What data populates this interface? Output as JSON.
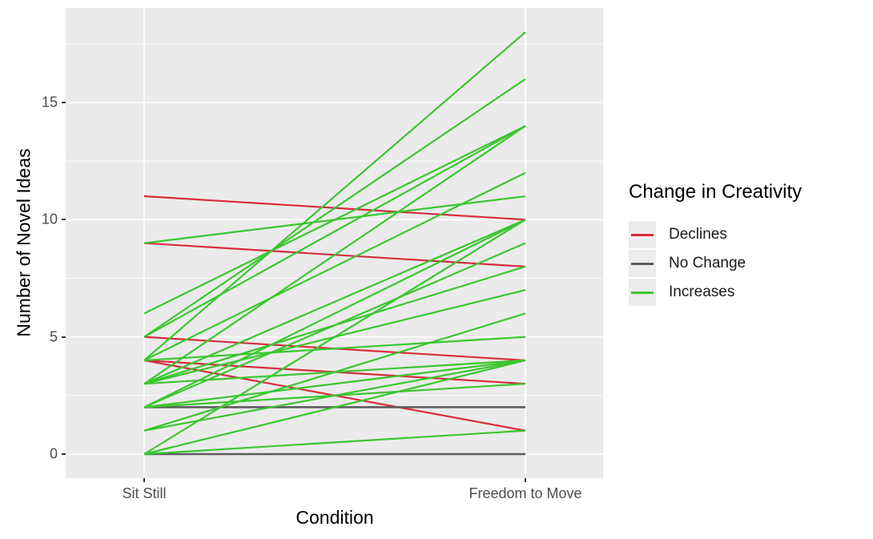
{
  "figure": {
    "y_axis": {
      "title": "Number of Novel Ideas",
      "tick_labels": [
        "0",
        "5",
        "10",
        "15"
      ]
    },
    "x_axis": {
      "title": "Condition",
      "tick_labels": [
        "Sit Still",
        "Freedom to Move"
      ]
    },
    "legend": {
      "title": "Change in Creativity",
      "items": [
        {
          "label": "Declines",
          "color": "#D72D3C"
        },
        {
          "label": "No Change",
          "color": "#5C5C5C"
        },
        {
          "label": "Increases",
          "color": "#3BC62F"
        }
      ]
    }
  },
  "chart_data": {
    "type": "line",
    "subtype": "paired-slope-graph",
    "title": "",
    "xlabel": "Condition",
    "ylabel": "Number of Novel Ideas",
    "categories": [
      "Sit Still",
      "Freedom to Move"
    ],
    "yticks": [
      0,
      5,
      10,
      15
    ],
    "yminorticks": [
      2.5,
      7.5,
      12.5,
      17.5
    ],
    "ylim": [
      -0.9,
      19.0
    ],
    "grid": true,
    "panel_background": "#EBEBEB",
    "gridline_color": "#FFFFFF",
    "legend_title": "Change in Creativity",
    "legend_position": "right",
    "series": [
      {
        "name": "Declines",
        "color": "#D72D3C",
        "pairs": [
          [
            11,
            10
          ],
          [
            9,
            8
          ],
          [
            5,
            4
          ],
          [
            4,
            3
          ],
          [
            4,
            1
          ]
        ]
      },
      {
        "name": "No Change",
        "color": "#5C5C5C",
        "pairs": [
          [
            2,
            2
          ],
          [
            0,
            0
          ]
        ]
      },
      {
        "name": "Increases",
        "color": "#3BC62F",
        "pairs": [
          [
            0,
            1
          ],
          [
            0,
            4
          ],
          [
            0,
            10
          ],
          [
            1,
            4
          ],
          [
            1,
            6
          ],
          [
            2,
            3
          ],
          [
            2,
            4
          ],
          [
            2,
            9
          ],
          [
            2,
            10
          ],
          [
            3,
            4
          ],
          [
            3,
            7
          ],
          [
            3,
            8
          ],
          [
            3,
            10
          ],
          [
            3,
            14
          ],
          [
            4,
            5
          ],
          [
            4,
            12
          ],
          [
            4,
            18
          ],
          [
            5,
            14
          ],
          [
            5,
            16
          ],
          [
            6,
            14
          ],
          [
            9,
            11
          ]
        ]
      }
    ]
  }
}
